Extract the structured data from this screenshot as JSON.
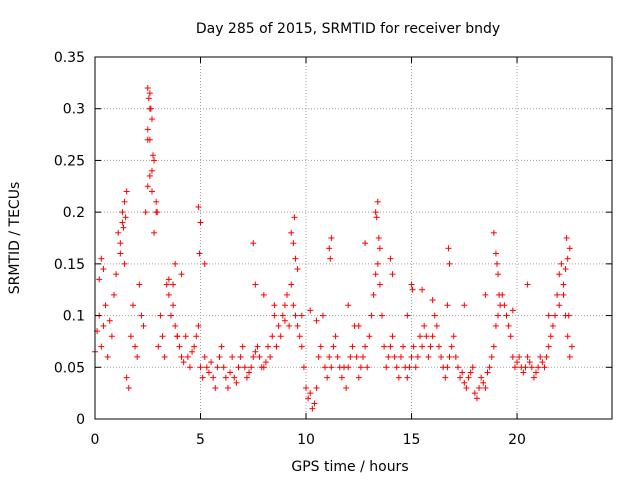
{
  "chart_data": {
    "type": "scatter",
    "title": "Day 285 of 2015, SRMTID for receiver bndy",
    "xlabel": "GPS time / hours",
    "ylabel": "SRMTID / TECUs",
    "xlim": [
      0,
      24.5
    ],
    "ylim": [
      0,
      0.35
    ],
    "x_ticks": [
      0,
      5,
      10,
      15,
      20
    ],
    "x_tick_labels": [
      "0",
      "5",
      "10",
      "15",
      "20"
    ],
    "y_ticks": [
      0,
      0.05,
      0.1,
      0.15,
      0.2,
      0.25,
      0.3,
      0.35
    ],
    "y_tick_labels": [
      "0",
      "0.05",
      "0.1",
      "0.15",
      "0.2",
      "0.25",
      "0.3",
      "0.35"
    ],
    "grid": true,
    "marker": "+",
    "color": "#ff0000",
    "series": [
      {
        "name": "SRMTID",
        "x": [
          0.0,
          0.1,
          0.2,
          0.3,
          0.4,
          0.5,
          0.6,
          0.7,
          0.8,
          0.9,
          1.0,
          1.1,
          1.2,
          1.3,
          1.4,
          1.5,
          1.6,
          1.7,
          1.8,
          1.9,
          2.0,
          2.1,
          2.2,
          2.3,
          2.4,
          2.5,
          2.6,
          2.7,
          2.8,
          2.9,
          3.0,
          3.1,
          3.2,
          3.3,
          3.4,
          3.5,
          3.6,
          3.7,
          3.8,
          3.9,
          4.0,
          4.1,
          4.2,
          4.3,
          4.4,
          4.5,
          4.6,
          4.7,
          4.8,
          4.9,
          5.0,
          5.1,
          5.2,
          5.3,
          5.4,
          5.5,
          5.6,
          5.7,
          5.8,
          5.9,
          6.0,
          6.1,
          6.2,
          6.3,
          6.4,
          6.5,
          6.6,
          6.7,
          6.8,
          6.9,
          7.0,
          7.1,
          7.2,
          7.3,
          7.4,
          7.5,
          7.6,
          7.7,
          7.8,
          7.9,
          8.0,
          8.1,
          8.2,
          8.3,
          8.4,
          8.5,
          8.6,
          8.7,
          8.8,
          8.9,
          9.0,
          9.1,
          9.2,
          9.3,
          9.4,
          9.5,
          9.6,
          9.7,
          9.8,
          9.9,
          10.0,
          10.1,
          10.2,
          10.3,
          10.4,
          10.5,
          10.6,
          10.7,
          10.8,
          10.9,
          11.0,
          11.1,
          11.2,
          11.3,
          11.4,
          11.5,
          11.6,
          11.7,
          11.8,
          11.9,
          12.0,
          12.1,
          12.2,
          12.3,
          12.4,
          12.5,
          12.6,
          12.7,
          12.8,
          12.9,
          13.0,
          13.1,
          13.2,
          13.3,
          13.4,
          13.5,
          13.6,
          13.7,
          13.8,
          13.9,
          14.0,
          14.1,
          14.2,
          14.3,
          14.4,
          14.5,
          14.6,
          14.7,
          14.8,
          14.9,
          15.0,
          15.1,
          15.2,
          15.3,
          15.4,
          15.5,
          15.6,
          15.7,
          15.8,
          15.9,
          16.0,
          16.1,
          16.2,
          16.3,
          16.4,
          16.5,
          16.6,
          16.7,
          16.8,
          16.9,
          17.0,
          17.1,
          17.2,
          17.3,
          17.4,
          17.5,
          17.6,
          17.7,
          17.8,
          17.9,
          18.0,
          18.1,
          18.2,
          18.3,
          18.4,
          18.5,
          18.6,
          18.7,
          18.8,
          18.9,
          19.0,
          19.1,
          19.2,
          19.3,
          19.4,
          19.5,
          19.6,
          19.7,
          19.8,
          19.9,
          20.0,
          20.1,
          20.2,
          20.3,
          20.4,
          20.5,
          20.6,
          20.7,
          20.8,
          20.9,
          21.0,
          21.1,
          21.2,
          21.3,
          21.4,
          21.5,
          21.6,
          21.7,
          21.8,
          21.9,
          22.0,
          22.1,
          22.2,
          22.3,
          22.4,
          22.5,
          22.6,
          2.5,
          2.6,
          2.55,
          2.65,
          2.7,
          2.5,
          2.6,
          2.75,
          2.8,
          2.7,
          2.6,
          2.5,
          2.9,
          2.95,
          1.3,
          1.4,
          1.5,
          1.2,
          1.35,
          1.45,
          4.9,
          5.0,
          4.95,
          9.3,
          9.4,
          9.5,
          9.6,
          9.45,
          11.1,
          11.2,
          11.15,
          12.8,
          13.3,
          13.4,
          13.35,
          13.45,
          13.5,
          14.0,
          14.1,
          15.0,
          15.05,
          16.7,
          16.8,
          16.75,
          18.9,
          19.0,
          19.05,
          19.1,
          19.15,
          22.3,
          22.4,
          22.5,
          22.35,
          22.45,
          22.2,
          0.2,
          0.3,
          0.4,
          3.5,
          3.7,
          3.8,
          3.9,
          4.1,
          5.2,
          7.5,
          7.6,
          8.0,
          8.5,
          9.0,
          9.8,
          10.2,
          10.5,
          12.0,
          12.5,
          14.8,
          15.5,
          16.0,
          17.5,
          18.5,
          19.8,
          20.5,
          21.5,
          22.0
        ],
        "y": [
          0.065,
          0.085,
          0.1,
          0.07,
          0.09,
          0.11,
          0.06,
          0.095,
          0.08,
          0.12,
          0.14,
          0.18,
          0.16,
          0.2,
          0.15,
          0.04,
          0.03,
          0.08,
          0.11,
          0.07,
          0.06,
          0.13,
          0.1,
          0.09,
          0.2,
          0.27,
          0.3,
          0.22,
          0.18,
          0.2,
          0.07,
          0.1,
          0.08,
          0.06,
          0.13,
          0.12,
          0.1,
          0.11,
          0.09,
          0.08,
          0.07,
          0.06,
          0.055,
          0.08,
          0.06,
          0.05,
          0.065,
          0.07,
          0.08,
          0.09,
          0.05,
          0.04,
          0.06,
          0.05,
          0.045,
          0.055,
          0.04,
          0.03,
          0.05,
          0.06,
          0.07,
          0.05,
          0.04,
          0.03,
          0.045,
          0.06,
          0.04,
          0.035,
          0.05,
          0.06,
          0.07,
          0.05,
          0.04,
          0.045,
          0.05,
          0.06,
          0.065,
          0.07,
          0.06,
          0.05,
          0.05,
          0.055,
          0.07,
          0.06,
          0.08,
          0.1,
          0.07,
          0.09,
          0.08,
          0.1,
          0.11,
          0.12,
          0.09,
          0.13,
          0.11,
          0.1,
          0.09,
          0.08,
          0.07,
          0.05,
          0.03,
          0.02,
          0.025,
          0.01,
          0.015,
          0.03,
          0.06,
          0.07,
          0.1,
          0.05,
          0.04,
          0.06,
          0.05,
          0.07,
          0.08,
          0.06,
          0.05,
          0.04,
          0.05,
          0.03,
          0.05,
          0.06,
          0.07,
          0.09,
          0.06,
          0.04,
          0.05,
          0.06,
          0.07,
          0.05,
          0.08,
          0.1,
          0.12,
          0.14,
          0.15,
          0.13,
          0.1,
          0.07,
          0.05,
          0.06,
          0.07,
          0.08,
          0.06,
          0.05,
          0.04,
          0.06,
          0.07,
          0.05,
          0.04,
          0.05,
          0.06,
          0.07,
          0.05,
          0.06,
          0.08,
          0.07,
          0.09,
          0.08,
          0.06,
          0.07,
          0.08,
          0.1,
          0.09,
          0.07,
          0.06,
          0.05,
          0.04,
          0.05,
          0.06,
          0.07,
          0.08,
          0.06,
          0.05,
          0.04,
          0.045,
          0.035,
          0.03,
          0.04,
          0.045,
          0.05,
          0.025,
          0.02,
          0.03,
          0.04,
          0.035,
          0.03,
          0.045,
          0.05,
          0.06,
          0.07,
          0.09,
          0.1,
          0.11,
          0.12,
          0.11,
          0.1,
          0.09,
          0.08,
          0.06,
          0.05,
          0.055,
          0.06,
          0.05,
          0.045,
          0.05,
          0.06,
          0.055,
          0.05,
          0.04,
          0.045,
          0.05,
          0.06,
          0.055,
          0.05,
          0.06,
          0.07,
          0.08,
          0.09,
          0.1,
          0.12,
          0.14,
          0.15,
          0.13,
          0.1,
          0.08,
          0.06,
          0.07,
          0.32,
          0.315,
          0.31,
          0.3,
          0.29,
          0.28,
          0.27,
          0.255,
          0.25,
          0.24,
          0.235,
          0.225,
          0.21,
          0.2,
          0.19,
          0.21,
          0.22,
          0.17,
          0.185,
          0.195,
          0.205,
          0.19,
          0.16,
          0.18,
          0.17,
          0.155,
          0.145,
          0.195,
          0.165,
          0.175,
          0.155,
          0.17,
          0.2,
          0.21,
          0.195,
          0.175,
          0.165,
          0.155,
          0.14,
          0.13,
          0.125,
          0.11,
          0.15,
          0.165,
          0.18,
          0.16,
          0.15,
          0.14,
          0.12,
          0.145,
          0.155,
          0.165,
          0.175,
          0.1,
          0.12,
          0.135,
          0.155,
          0.145,
          0.135,
          0.13,
          0.15,
          0.08,
          0.14,
          0.15,
          0.17,
          0.13,
          0.12,
          0.11,
          0.095,
          0.1,
          0.105,
          0.095,
          0.11,
          0.09,
          0.1,
          0.125,
          0.115,
          0.11,
          0.12,
          0.105,
          0.13,
          0.1,
          0.11
        ]
      }
    ]
  }
}
